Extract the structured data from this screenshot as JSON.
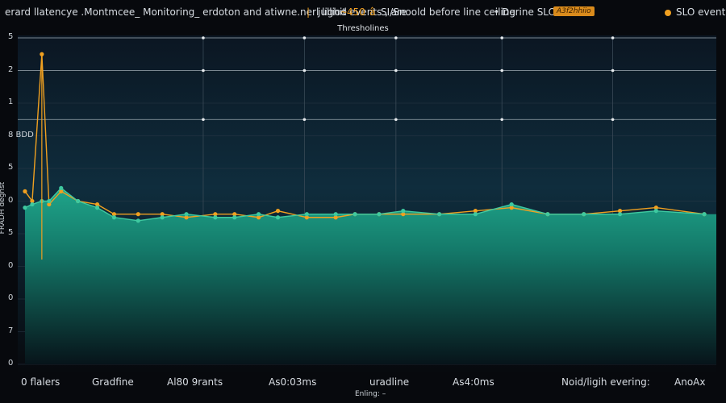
{
  "header": {
    "title_left": "erard llatencye .Montmcee_ Monitoring_ erdoton and atiwne.nerl lighit events ,  are",
    "mark_1": "|",
    "item_a": "julliod",
    "mark_2": "â",
    "item_b": "̴450",
    "item_c": "SI/Snoold before line ceiling",
    "bullet": "•",
    "item_d": "Derine SLO",
    "badge": "A3f2hhiio",
    "legend_label": "SLO  events",
    "colors": {
      "accent": "#f0a020",
      "badge_bg": "#d98b1c"
    }
  },
  "chart_data": {
    "type": "line",
    "title": "",
    "subtitle": "Thresholines",
    "ylabel": "FRADH deghst",
    "xlabel": "Enling: –",
    "ylim": [
      0,
      10
    ],
    "y_tick_labels": [
      "0",
      "7",
      "0",
      "0",
      "5",
      "0",
      "5",
      "8 BDD",
      "1",
      "2",
      "5"
    ],
    "x_tick_labels": [
      "0 flalers",
      "Gradfine",
      "Al80 9rants",
      "As0:03ms",
      "uradline",
      "As4:0ms",
      "Noid/ligih evering:",
      "AnoAx"
    ],
    "threshold_lines": [
      7.5,
      9.0,
      10.0
    ],
    "grid": true,
    "series": [
      {
        "color": "#f0a020",
        "x": [
          0.3,
          0.6,
          1.0,
          1.3,
          1.8,
          2.5,
          3.3,
          4.0,
          5.0,
          6.0,
          7.0,
          8.2,
          9.0,
          10.0,
          10.8,
          12.0,
          13.2,
          14.0,
          15.0,
          16.0,
          17.5,
          19.0,
          20.5,
          22.0,
          23.5,
          25.0,
          26.5,
          28.5
        ],
        "y": [
          5.3,
          5.0,
          9.5,
          4.9,
          5.3,
          5.0,
          4.9,
          4.6,
          4.6,
          4.6,
          4.5,
          4.6,
          4.6,
          4.5,
          4.7,
          4.5,
          4.5,
          4.6,
          4.6,
          4.6,
          4.6,
          4.7,
          4.8,
          4.6,
          4.6,
          4.7,
          4.8,
          4.6
        ]
      },
      {
        "color": "#3ec9a0",
        "x": [
          0.3,
          0.6,
          1.0,
          1.3,
          1.8,
          2.5,
          3.3,
          4.0,
          5.0,
          6.0,
          7.0,
          8.2,
          9.0,
          10.0,
          10.8,
          12.0,
          13.2,
          14.0,
          15.0,
          16.0,
          17.5,
          19.0,
          20.5,
          22.0,
          23.5,
          25.0,
          26.5,
          28.5
        ],
        "y": [
          4.8,
          4.9,
          5.0,
          5.0,
          5.4,
          5.0,
          4.8,
          4.5,
          4.4,
          4.5,
          4.6,
          4.5,
          4.5,
          4.6,
          4.5,
          4.6,
          4.6,
          4.6,
          4.6,
          4.7,
          4.6,
          4.6,
          4.9,
          4.6,
          4.6,
          4.6,
          4.7,
          4.6
        ]
      }
    ]
  }
}
